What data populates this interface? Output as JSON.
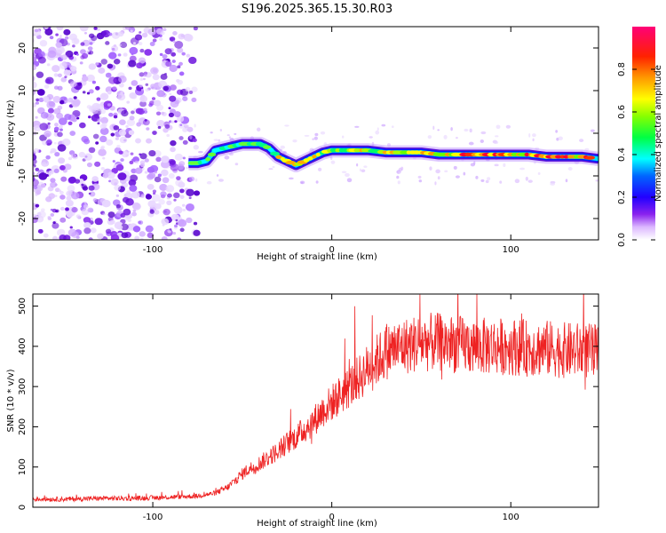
{
  "title": "S196.2025.365.15.30.R03",
  "chart_data": [
    {
      "type": "heatmap",
      "name": "spectrogram",
      "xlabel": "Height of straight line (km)",
      "ylabel": "Frequency (Hz)",
      "xlim": [
        -167,
        149
      ],
      "ylim": [
        -25,
        25
      ],
      "xticks": [
        -100,
        0,
        100
      ],
      "xtick_labels": [
        "-100",
        "0",
        "100"
      ],
      "yticks": [
        -20,
        -10,
        0,
        10,
        20
      ],
      "ytick_labels": [
        "-20",
        "-10",
        "0",
        "10",
        "20"
      ],
      "colorbar": {
        "label": "Normalized spectral amplitude",
        "range": [
          0.0,
          1.0
        ],
        "ticks": [
          0.0,
          0.2,
          0.4,
          0.6,
          0.8
        ],
        "tick_labels": [
          "0.0",
          "0.2",
          "0.4",
          "0.6",
          "0.8"
        ],
        "colormap": [
          "#ffffff",
          "#cc88ff",
          "#7700ee",
          "#0000ff",
          "#00ffff",
          "#00ff00",
          "#ffff00",
          "#ff8800",
          "#ff0000",
          "#ff0088"
        ]
      },
      "noise_region_x": [
        -167,
        -82
      ],
      "signal_line": {
        "x": [
          -80,
          -75,
          -70,
          -65,
          -60,
          -55,
          -50,
          -45,
          -40,
          -35,
          -30,
          -25,
          -20,
          -15,
          -10,
          -5,
          0,
          10,
          20,
          30,
          40,
          50,
          60,
          70,
          80,
          90,
          100,
          110,
          120,
          130,
          140,
          149
        ],
        "y": [
          -7,
          -7,
          -6.5,
          -4,
          -3.5,
          -3,
          -2.5,
          -2.5,
          -2.5,
          -3.5,
          -5.5,
          -6.5,
          -7.5,
          -6.5,
          -5.5,
          -4.5,
          -4,
          -4,
          -4,
          -4.5,
          -4.5,
          -4.5,
          -5,
          -5,
          -5,
          -5,
          -5,
          -5,
          -5.5,
          -5.5,
          -5.5,
          -6
        ]
      }
    },
    {
      "type": "line",
      "name": "snr",
      "xlabel": "Height of straight line (km)",
      "ylabel": "SNR (10 * v/v)",
      "xlim": [
        -167,
        149
      ],
      "ylim": [
        0,
        530
      ],
      "xticks": [
        -100,
        0,
        100
      ],
      "xtick_labels": [
        "-100",
        "0",
        "100"
      ],
      "yticks": [
        0,
        100,
        200,
        300,
        400,
        500
      ],
      "ytick_labels": [
        "0",
        "100",
        "200",
        "300",
        "400",
        "500"
      ],
      "color": "#ee2222",
      "series": [
        {
          "name": "SNR",
          "x": [
            -167,
            -150,
            -130,
            -110,
            -90,
            -75,
            -65,
            -58,
            -52,
            -48,
            -44,
            -40,
            -35,
            -30,
            -25,
            -20,
            -15,
            -10,
            -5,
            0,
            5,
            10,
            15,
            20,
            25,
            30,
            35,
            40,
            45,
            50,
            60,
            70,
            80,
            90,
            100,
            110,
            120,
            130,
            140,
            149
          ],
          "y": [
            20,
            20,
            22,
            22,
            25,
            28,
            35,
            50,
            75,
            90,
            100,
            110,
            125,
            140,
            160,
            175,
            195,
            215,
            240,
            260,
            280,
            300,
            320,
            345,
            365,
            385,
            395,
            400,
            405,
            410,
            410,
            405,
            400,
            400,
            400,
            395,
            395,
            390,
            390,
            385
          ]
        }
      ]
    }
  ]
}
